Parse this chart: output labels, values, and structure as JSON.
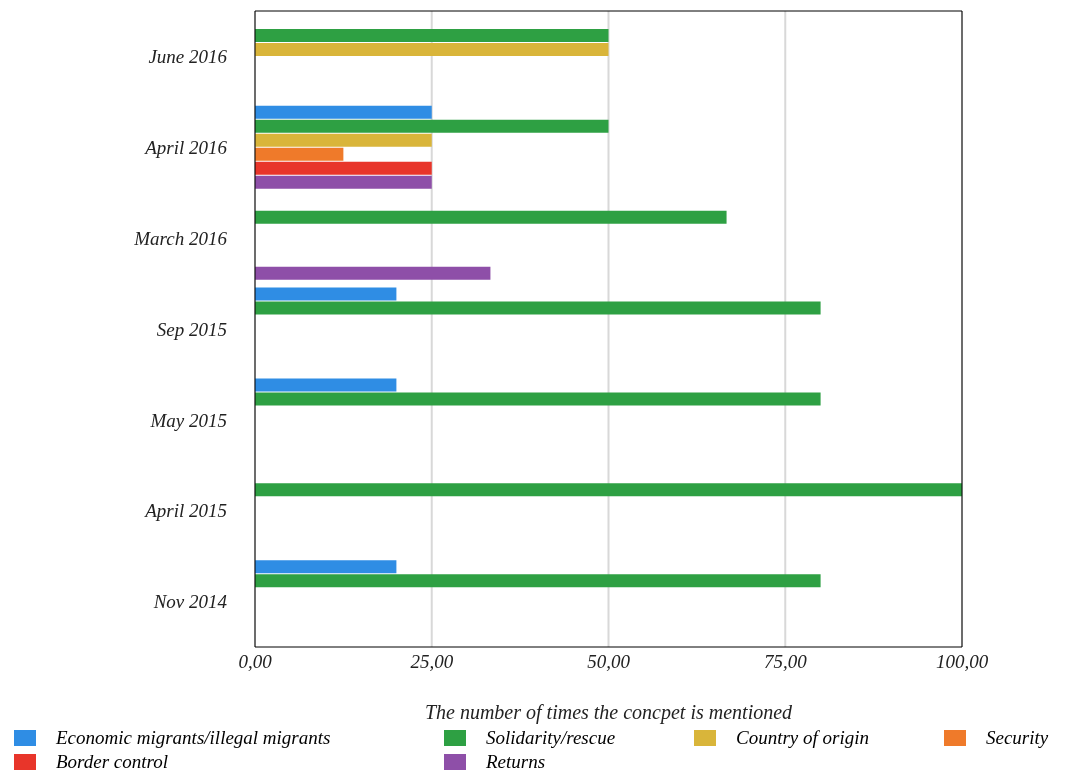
{
  "chart_data": {
    "type": "bar",
    "orientation": "horizontal",
    "xlabel": "The number of times the concpet is mentioned",
    "categories": [
      "June 2016",
      "April 2016",
      "March 2016",
      "Sep 2015",
      "May 2015",
      "April 2015",
      "Nov 2014"
    ],
    "series": [
      {
        "name": "Economic migrants/illegal migrants",
        "color": "#2f8de4",
        "values": [
          null,
          25,
          null,
          20,
          20,
          null,
          20
        ]
      },
      {
        "name": "Solidarity/rescue",
        "color": "#2ea043",
        "values": [
          50,
          50,
          66.7,
          80,
          80,
          100,
          80
        ]
      },
      {
        "name": "Country of origin",
        "color": "#d9b53a",
        "values": [
          50,
          25,
          null,
          null,
          null,
          null,
          null
        ]
      },
      {
        "name": "Security",
        "color": "#ef7a2a",
        "values": [
          null,
          12.5,
          null,
          null,
          null,
          null,
          null
        ]
      },
      {
        "name": "Border control",
        "color": "#e8352a",
        "values": [
          null,
          25,
          null,
          null,
          null,
          null,
          null
        ]
      },
      {
        "name": "Returns",
        "color": "#8e4fa8",
        "values": [
          null,
          25,
          33.3,
          null,
          null,
          null,
          null
        ]
      }
    ],
    "xlim": [
      0,
      100
    ],
    "xticks": [
      {
        "value": 0,
        "label": "0,00"
      },
      {
        "value": 25,
        "label": "25,00"
      },
      {
        "value": 50,
        "label": "50,00"
      },
      {
        "value": 75,
        "label": "75,00"
      },
      {
        "value": 100,
        "label": "100,00"
      }
    ],
    "grid": "x",
    "legend": "bottom"
  }
}
